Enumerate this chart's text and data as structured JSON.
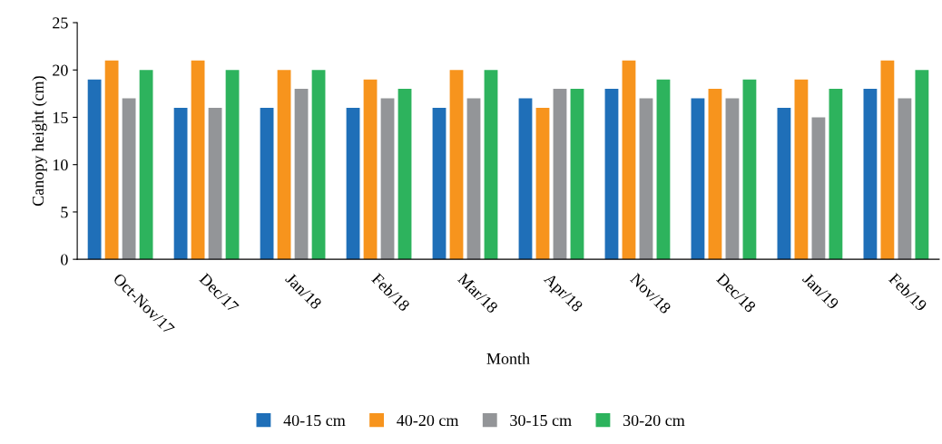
{
  "chart_data": {
    "type": "bar",
    "xlabel": "Month",
    "ylabel": "Canopy height (cm)",
    "categories": [
      "Oct-Nov/17",
      "Dec/17",
      "Jan/18",
      "Feb/18",
      "Mar/18",
      "Apr/18",
      "Nov/18",
      "Dec/18",
      "Jan/19",
      "Feb/19"
    ],
    "series": [
      {
        "name": "40-15 cm",
        "color": "#1f6fb8",
        "values": [
          19,
          16,
          16,
          16,
          16,
          17,
          18,
          17,
          16,
          18
        ]
      },
      {
        "name": "40-20 cm",
        "color": "#f7941d",
        "values": [
          21,
          21,
          20,
          19,
          20,
          16,
          21,
          18,
          19,
          21
        ]
      },
      {
        "name": "30-15 cm",
        "color": "#939598",
        "values": [
          17,
          16,
          18,
          17,
          17,
          18,
          17,
          17,
          15,
          17
        ]
      },
      {
        "name": "30-20 cm",
        "color": "#2db35d",
        "values": [
          20,
          20,
          20,
          18,
          20,
          18,
          19,
          19,
          18,
          20
        ]
      }
    ],
    "ylim": [
      0,
      25
    ],
    "yticks": [
      0,
      5,
      10,
      15,
      20,
      25
    ],
    "grid": false,
    "legend": "bottom"
  }
}
